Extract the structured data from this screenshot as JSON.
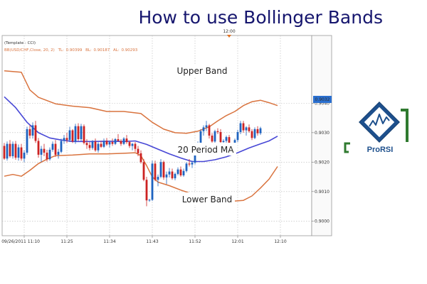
{
  "title": "How to use Bollinger Bands",
  "header": {
    "template": "(Template : CCI)",
    "indicator": "BB(USD/CHF,Close, 20, 2)",
    "tl_label": "TL:",
    "tl_value": "0.90399",
    "bl_label": "BL:",
    "bl_value": "0.90187",
    "al_label": "AL:",
    "al_value": "0.90293"
  },
  "top_time_label": "12:00",
  "annotations": {
    "upper": "Upper Band",
    "ma": "20 Period MA",
    "lower": "Lower Band"
  },
  "last_price": "0.9032",
  "logo": {
    "text": "ProRSI"
  },
  "colors": {
    "up": "#1e63c0",
    "down": "#cc2222",
    "bands": "#d9733e",
    "ma": "#4747d6",
    "grid": "#b8b8b8",
    "title": "#16166e",
    "logo_green": "#2f7a2f",
    "logo_blue": "#1d4f8c"
  },
  "chart_data": {
    "type": "candlestick",
    "title": "How to use Bollinger Bands",
    "xlabel": "",
    "ylabel": "",
    "ylim": [
      0.8995,
      0.9063
    ],
    "y_ticks": [
      0.904,
      0.903,
      0.902,
      0.901,
      0.9
    ],
    "y_tick_labels": [
      "0.9040",
      "0.9030",
      "0.9020",
      "0.9010",
      "0.9000"
    ],
    "x_tick_labels": [
      {
        "index": 7,
        "label": "09/26/2011 11:10"
      },
      {
        "index": 22,
        "label": "11:25"
      },
      {
        "index": 37,
        "label": "11:34"
      },
      {
        "index": 52,
        "label": "11:43"
      },
      {
        "index": 67,
        "label": "11:52"
      },
      {
        "index": 82,
        "label": "12:01"
      },
      {
        "index": 97,
        "label": "12:10"
      }
    ],
    "grid": true,
    "candles": [
      [
        0.90255,
        0.90265,
        0.90208,
        0.90212
      ],
      [
        0.90212,
        0.9027,
        0.90205,
        0.90262
      ],
      [
        0.90262,
        0.90275,
        0.90215,
        0.9022
      ],
      [
        0.9022,
        0.9027,
        0.90212,
        0.90262
      ],
      [
        0.90262,
        0.90272,
        0.90208,
        0.90215
      ],
      [
        0.90215,
        0.9026,
        0.90205,
        0.9025
      ],
      [
        0.9025,
        0.90262,
        0.90205,
        0.90212
      ],
      [
        0.90212,
        0.9024,
        0.902,
        0.90232
      ],
      [
        0.90232,
        0.9032,
        0.90225,
        0.90312
      ],
      [
        0.90312,
        0.90325,
        0.9028,
        0.9029
      ],
      [
        0.9029,
        0.90335,
        0.9028,
        0.90325
      ],
      [
        0.90325,
        0.9034,
        0.90265,
        0.90272
      ],
      [
        0.90272,
        0.90282,
        0.90215,
        0.90225
      ],
      [
        0.90225,
        0.90255,
        0.902,
        0.90245
      ],
      [
        0.90245,
        0.90262,
        0.9022,
        0.90232
      ],
      [
        0.90232,
        0.90242,
        0.90202,
        0.9021
      ],
      [
        0.9021,
        0.9025,
        0.90205,
        0.90242
      ],
      [
        0.90242,
        0.9027,
        0.90235,
        0.90262
      ],
      [
        0.90262,
        0.90275,
        0.90218,
        0.90225
      ],
      [
        0.90225,
        0.90245,
        0.90212,
        0.90235
      ],
      [
        0.90235,
        0.9028,
        0.9023,
        0.90272
      ],
      [
        0.90272,
        0.90292,
        0.90262,
        0.90282
      ],
      [
        0.90282,
        0.903,
        0.90265,
        0.90275
      ],
      [
        0.90275,
        0.9032,
        0.90268,
        0.90308
      ],
      [
        0.90308,
        0.90312,
        0.90265,
        0.9027
      ],
      [
        0.9027,
        0.9033,
        0.90262,
        0.90322
      ],
      [
        0.90322,
        0.90332,
        0.90272,
        0.90278
      ],
      [
        0.90278,
        0.9033,
        0.90272,
        0.90322
      ],
      [
        0.90322,
        0.90328,
        0.9026,
        0.90265
      ],
      [
        0.90265,
        0.90278,
        0.90245,
        0.90258
      ],
      [
        0.90258,
        0.90268,
        0.9024,
        0.90248
      ],
      [
        0.90248,
        0.90275,
        0.90242,
        0.9027
      ],
      [
        0.9027,
        0.9028,
        0.90235,
        0.9024
      ],
      [
        0.9024,
        0.90268,
        0.90232,
        0.90262
      ],
      [
        0.90262,
        0.90272,
        0.90248,
        0.90252
      ],
      [
        0.90252,
        0.9028,
        0.90248,
        0.90272
      ],
      [
        0.90272,
        0.90282,
        0.90255,
        0.9026
      ],
      [
        0.9026,
        0.90272,
        0.9025,
        0.90268
      ],
      [
        0.90268,
        0.9028,
        0.90255,
        0.90262
      ],
      [
        0.90262,
        0.90282,
        0.90258,
        0.90278
      ],
      [
        0.90278,
        0.90295,
        0.9027,
        0.90272
      ],
      [
        0.90272,
        0.90278,
        0.90255,
        0.90262
      ],
      [
        0.90262,
        0.90285,
        0.90258,
        0.9028
      ],
      [
        0.9028,
        0.90292,
        0.90262,
        0.90268
      ],
      [
        0.90268,
        0.90272,
        0.90248,
        0.90255
      ],
      [
        0.90255,
        0.90265,
        0.9024,
        0.90262
      ],
      [
        0.90262,
        0.90268,
        0.90235,
        0.90245
      ],
      [
        0.90245,
        0.90255,
        0.9022,
        0.9023
      ],
      [
        0.9023,
        0.9024,
        0.90195,
        0.902
      ],
      [
        0.902,
        0.9021,
        0.90135,
        0.9014
      ],
      [
        0.9014,
        0.9015,
        0.9005,
        0.9007
      ],
      [
        0.9007,
        0.90075,
        0.90065,
        0.90072
      ],
      [
        0.90072,
        0.90205,
        0.90068,
        0.90195
      ],
      [
        0.90195,
        0.90205,
        0.90135,
        0.9014
      ],
      [
        0.9014,
        0.90158,
        0.90118,
        0.9015
      ],
      [
        0.9015,
        0.9021,
        0.90145,
        0.902
      ],
      [
        0.902,
        0.90205,
        0.9014,
        0.90148
      ],
      [
        0.90148,
        0.90168,
        0.90125,
        0.90158
      ],
      [
        0.90158,
        0.9018,
        0.90148,
        0.90168
      ],
      [
        0.90168,
        0.90178,
        0.9014,
        0.90145
      ],
      [
        0.90145,
        0.90165,
        0.90138,
        0.9016
      ],
      [
        0.9016,
        0.90182,
        0.90155,
        0.90175
      ],
      [
        0.90175,
        0.90185,
        0.9015,
        0.90155
      ],
      [
        0.90155,
        0.90178,
        0.9015,
        0.9017
      ],
      [
        0.9017,
        0.902,
        0.90165,
        0.90195
      ],
      [
        0.90195,
        0.9021,
        0.90185,
        0.90192
      ],
      [
        0.90192,
        0.90205,
        0.9018,
        0.90198
      ],
      [
        0.90198,
        0.9024,
        0.90192,
        0.90235
      ],
      [
        0.90235,
        0.9027,
        0.90228,
        0.90262
      ],
      [
        0.90262,
        0.90312,
        0.90255,
        0.90305
      ],
      [
        0.90305,
        0.90325,
        0.9029,
        0.90318
      ],
      [
        0.90318,
        0.9034,
        0.90305,
        0.90325
      ],
      [
        0.90325,
        0.9033,
        0.9028,
        0.9029
      ],
      [
        0.9029,
        0.90298,
        0.90262,
        0.9027
      ],
      [
        0.9027,
        0.9031,
        0.90265,
        0.90305
      ],
      [
        0.90305,
        0.90315,
        0.90295,
        0.90302
      ],
      [
        0.90302,
        0.90312,
        0.90262,
        0.90268
      ],
      [
        0.90268,
        0.90278,
        0.90258,
        0.90272
      ],
      [
        0.90272,
        0.9029,
        0.90265,
        0.90285
      ],
      [
        0.90285,
        0.90292,
        0.9024,
        0.90248
      ],
      [
        0.90248,
        0.90262,
        0.90242,
        0.90258
      ],
      [
        0.90258,
        0.9028,
        0.90252,
        0.90275
      ],
      [
        0.90275,
        0.9031,
        0.90268,
        0.90302
      ],
      [
        0.90302,
        0.9034,
        0.90295,
        0.90332
      ],
      [
        0.90332,
        0.9034,
        0.903,
        0.90308
      ],
      [
        0.90308,
        0.90322,
        0.9029,
        0.90318
      ],
      [
        0.90318,
        0.90328,
        0.903,
        0.90305
      ],
      [
        0.90305,
        0.90312,
        0.90275,
        0.90282
      ],
      [
        0.90282,
        0.90318,
        0.90278,
        0.90312
      ],
      [
        0.90312,
        0.90322,
        0.9029,
        0.90298
      ],
      [
        0.90298,
        0.9032,
        0.90292,
        0.90315
      ]
    ],
    "upper_band": [
      [
        0,
        0.9051
      ],
      [
        6,
        0.90505
      ],
      [
        9,
        0.90445
      ],
      [
        12,
        0.9042
      ],
      [
        18,
        0.90398
      ],
      [
        24,
        0.9039
      ],
      [
        30,
        0.90385
      ],
      [
        36,
        0.90372
      ],
      [
        42,
        0.90372
      ],
      [
        48,
        0.90365
      ],
      [
        52,
        0.90335
      ],
      [
        56,
        0.90312
      ],
      [
        60,
        0.903
      ],
      [
        64,
        0.90298
      ],
      [
        68,
        0.90305
      ],
      [
        72,
        0.9032
      ],
      [
        75,
        0.9034
      ],
      [
        78,
        0.90358
      ],
      [
        81,
        0.90372
      ],
      [
        84,
        0.90392
      ],
      [
        87,
        0.90405
      ],
      [
        90,
        0.9041
      ],
      [
        93,
        0.90402
      ],
      [
        96,
        0.90392
      ]
    ],
    "lower_band": [
      [
        0,
        0.90152
      ],
      [
        3,
        0.90158
      ],
      [
        6,
        0.90152
      ],
      [
        9,
        0.90172
      ],
      [
        12,
        0.90195
      ],
      [
        15,
        0.9021
      ],
      [
        18,
        0.90222
      ],
      [
        24,
        0.90224
      ],
      [
        30,
        0.90228
      ],
      [
        36,
        0.90228
      ],
      [
        42,
        0.9023
      ],
      [
        46,
        0.90232
      ],
      [
        48,
        0.90222
      ],
      [
        50,
        0.90188
      ],
      [
        52,
        0.9015
      ],
      [
        54,
        0.90132
      ],
      [
        58,
        0.9012
      ],
      [
        62,
        0.90105
      ],
      [
        66,
        0.90092
      ],
      [
        70,
        0.90084
      ],
      [
        74,
        0.90078
      ],
      [
        78,
        0.90073
      ],
      [
        81,
        0.90068
      ],
      [
        84,
        0.9007
      ],
      [
        87,
        0.90085
      ],
      [
        90,
        0.90112
      ],
      [
        93,
        0.90142
      ],
      [
        96,
        0.90185
      ]
    ],
    "ma_20": [
      [
        0,
        0.90422
      ],
      [
        4,
        0.90385
      ],
      [
        8,
        0.90335
      ],
      [
        12,
        0.903
      ],
      [
        16,
        0.90282
      ],
      [
        20,
        0.90275
      ],
      [
        24,
        0.9027
      ],
      [
        30,
        0.9027
      ],
      [
        36,
        0.90271
      ],
      [
        42,
        0.9027
      ],
      [
        46,
        0.90272
      ],
      [
        50,
        0.9026
      ],
      [
        54,
        0.90244
      ],
      [
        58,
        0.90228
      ],
      [
        62,
        0.90214
      ],
      [
        66,
        0.90202
      ],
      [
        70,
        0.90202
      ],
      [
        74,
        0.90208
      ],
      [
        78,
        0.90218
      ],
      [
        82,
        0.90232
      ],
      [
        86,
        0.90248
      ],
      [
        90,
        0.90262
      ],
      [
        93,
        0.90272
      ],
      [
        96,
        0.90288
      ]
    ]
  }
}
